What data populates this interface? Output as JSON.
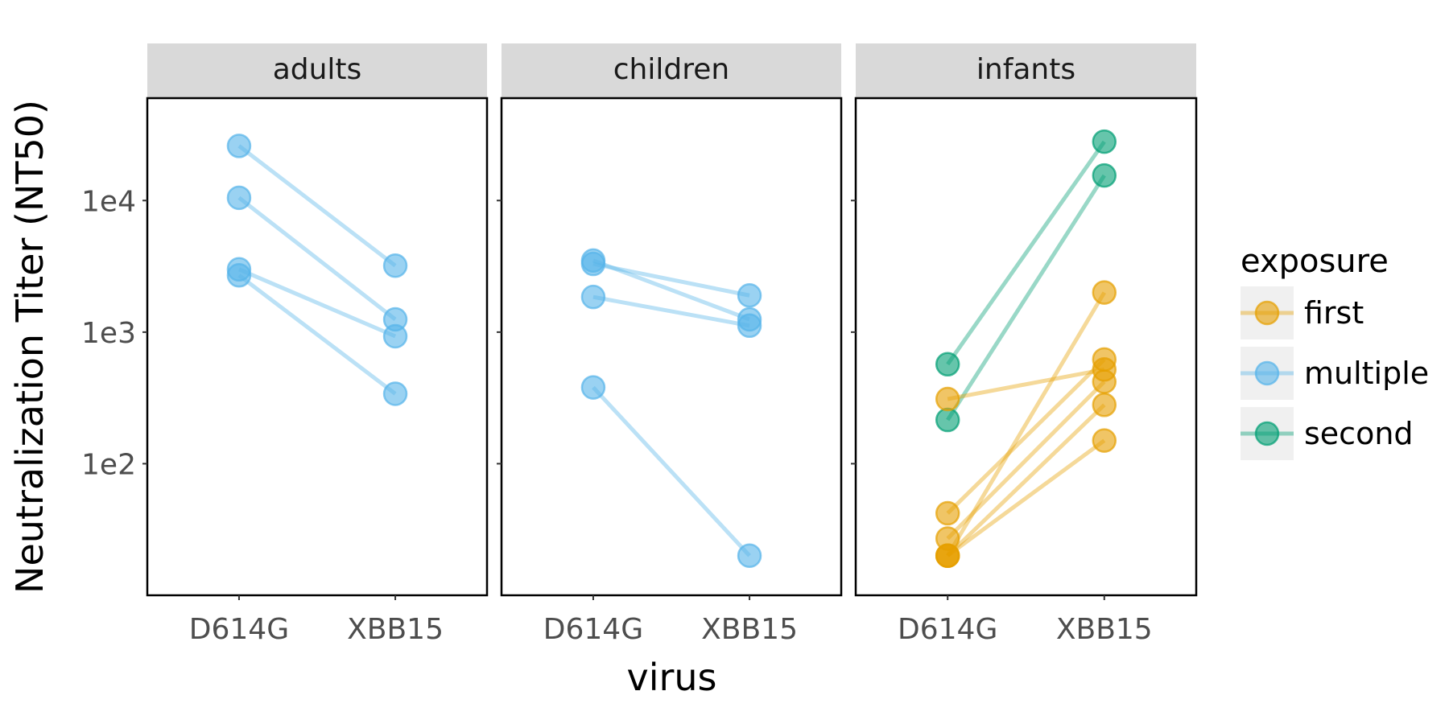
{
  "chart_data": {
    "type": "line",
    "xlabel": "virus",
    "ylabel": "Neutralization Titer (NT50)",
    "y_scale": "log10",
    "ylim": [
      10,
      60000
    ],
    "y_ticks": [
      {
        "value": 100,
        "label": "1e2"
      },
      {
        "value": 1000,
        "label": "1e3"
      },
      {
        "value": 10000,
        "label": "1e4"
      }
    ],
    "categories": [
      "D614G",
      "XBB15"
    ],
    "grid": false,
    "legend": {
      "title": "exposure",
      "position": "right",
      "entries": [
        {
          "name": "first",
          "color": "#E69F00"
        },
        {
          "name": "multiple",
          "color": "#56B4E9"
        },
        {
          "name": "second",
          "color": "#009E73"
        }
      ]
    },
    "facets": [
      {
        "label": "adults",
        "pairs": [
          {
            "exposure": "multiple",
            "values": [
              26000,
              3200
            ]
          },
          {
            "exposure": "multiple",
            "values": [
              10500,
              1250
            ]
          },
          {
            "exposure": "multiple",
            "values": [
              3000,
              930
            ]
          },
          {
            "exposure": "multiple",
            "values": [
              2700,
              340
            ]
          }
        ]
      },
      {
        "label": "children",
        "pairs": [
          {
            "exposure": "multiple",
            "values": [
              3500,
              1250
            ]
          },
          {
            "exposure": "multiple",
            "values": [
              3300,
              1900
            ]
          },
          {
            "exposure": "multiple",
            "values": [
              1850,
              1120
            ]
          },
          {
            "exposure": "multiple",
            "values": [
              380,
              20
            ]
          }
        ]
      },
      {
        "label": "infants",
        "pairs": [
          {
            "exposure": "second",
            "values": [
              570,
              28000
            ]
          },
          {
            "exposure": "second",
            "values": [
              215,
              15500
            ]
          },
          {
            "exposure": "first",
            "values": [
              310,
              520
            ]
          },
          {
            "exposure": "first",
            "values": [
              20,
              2000
            ]
          },
          {
            "exposure": "first",
            "values": [
              42,
              620
            ]
          },
          {
            "exposure": "first",
            "values": [
              27,
              420
            ]
          },
          {
            "exposure": "first",
            "values": [
              20,
              280
            ]
          },
          {
            "exposure": "first",
            "values": [
              20,
              150
            ]
          }
        ]
      }
    ]
  }
}
